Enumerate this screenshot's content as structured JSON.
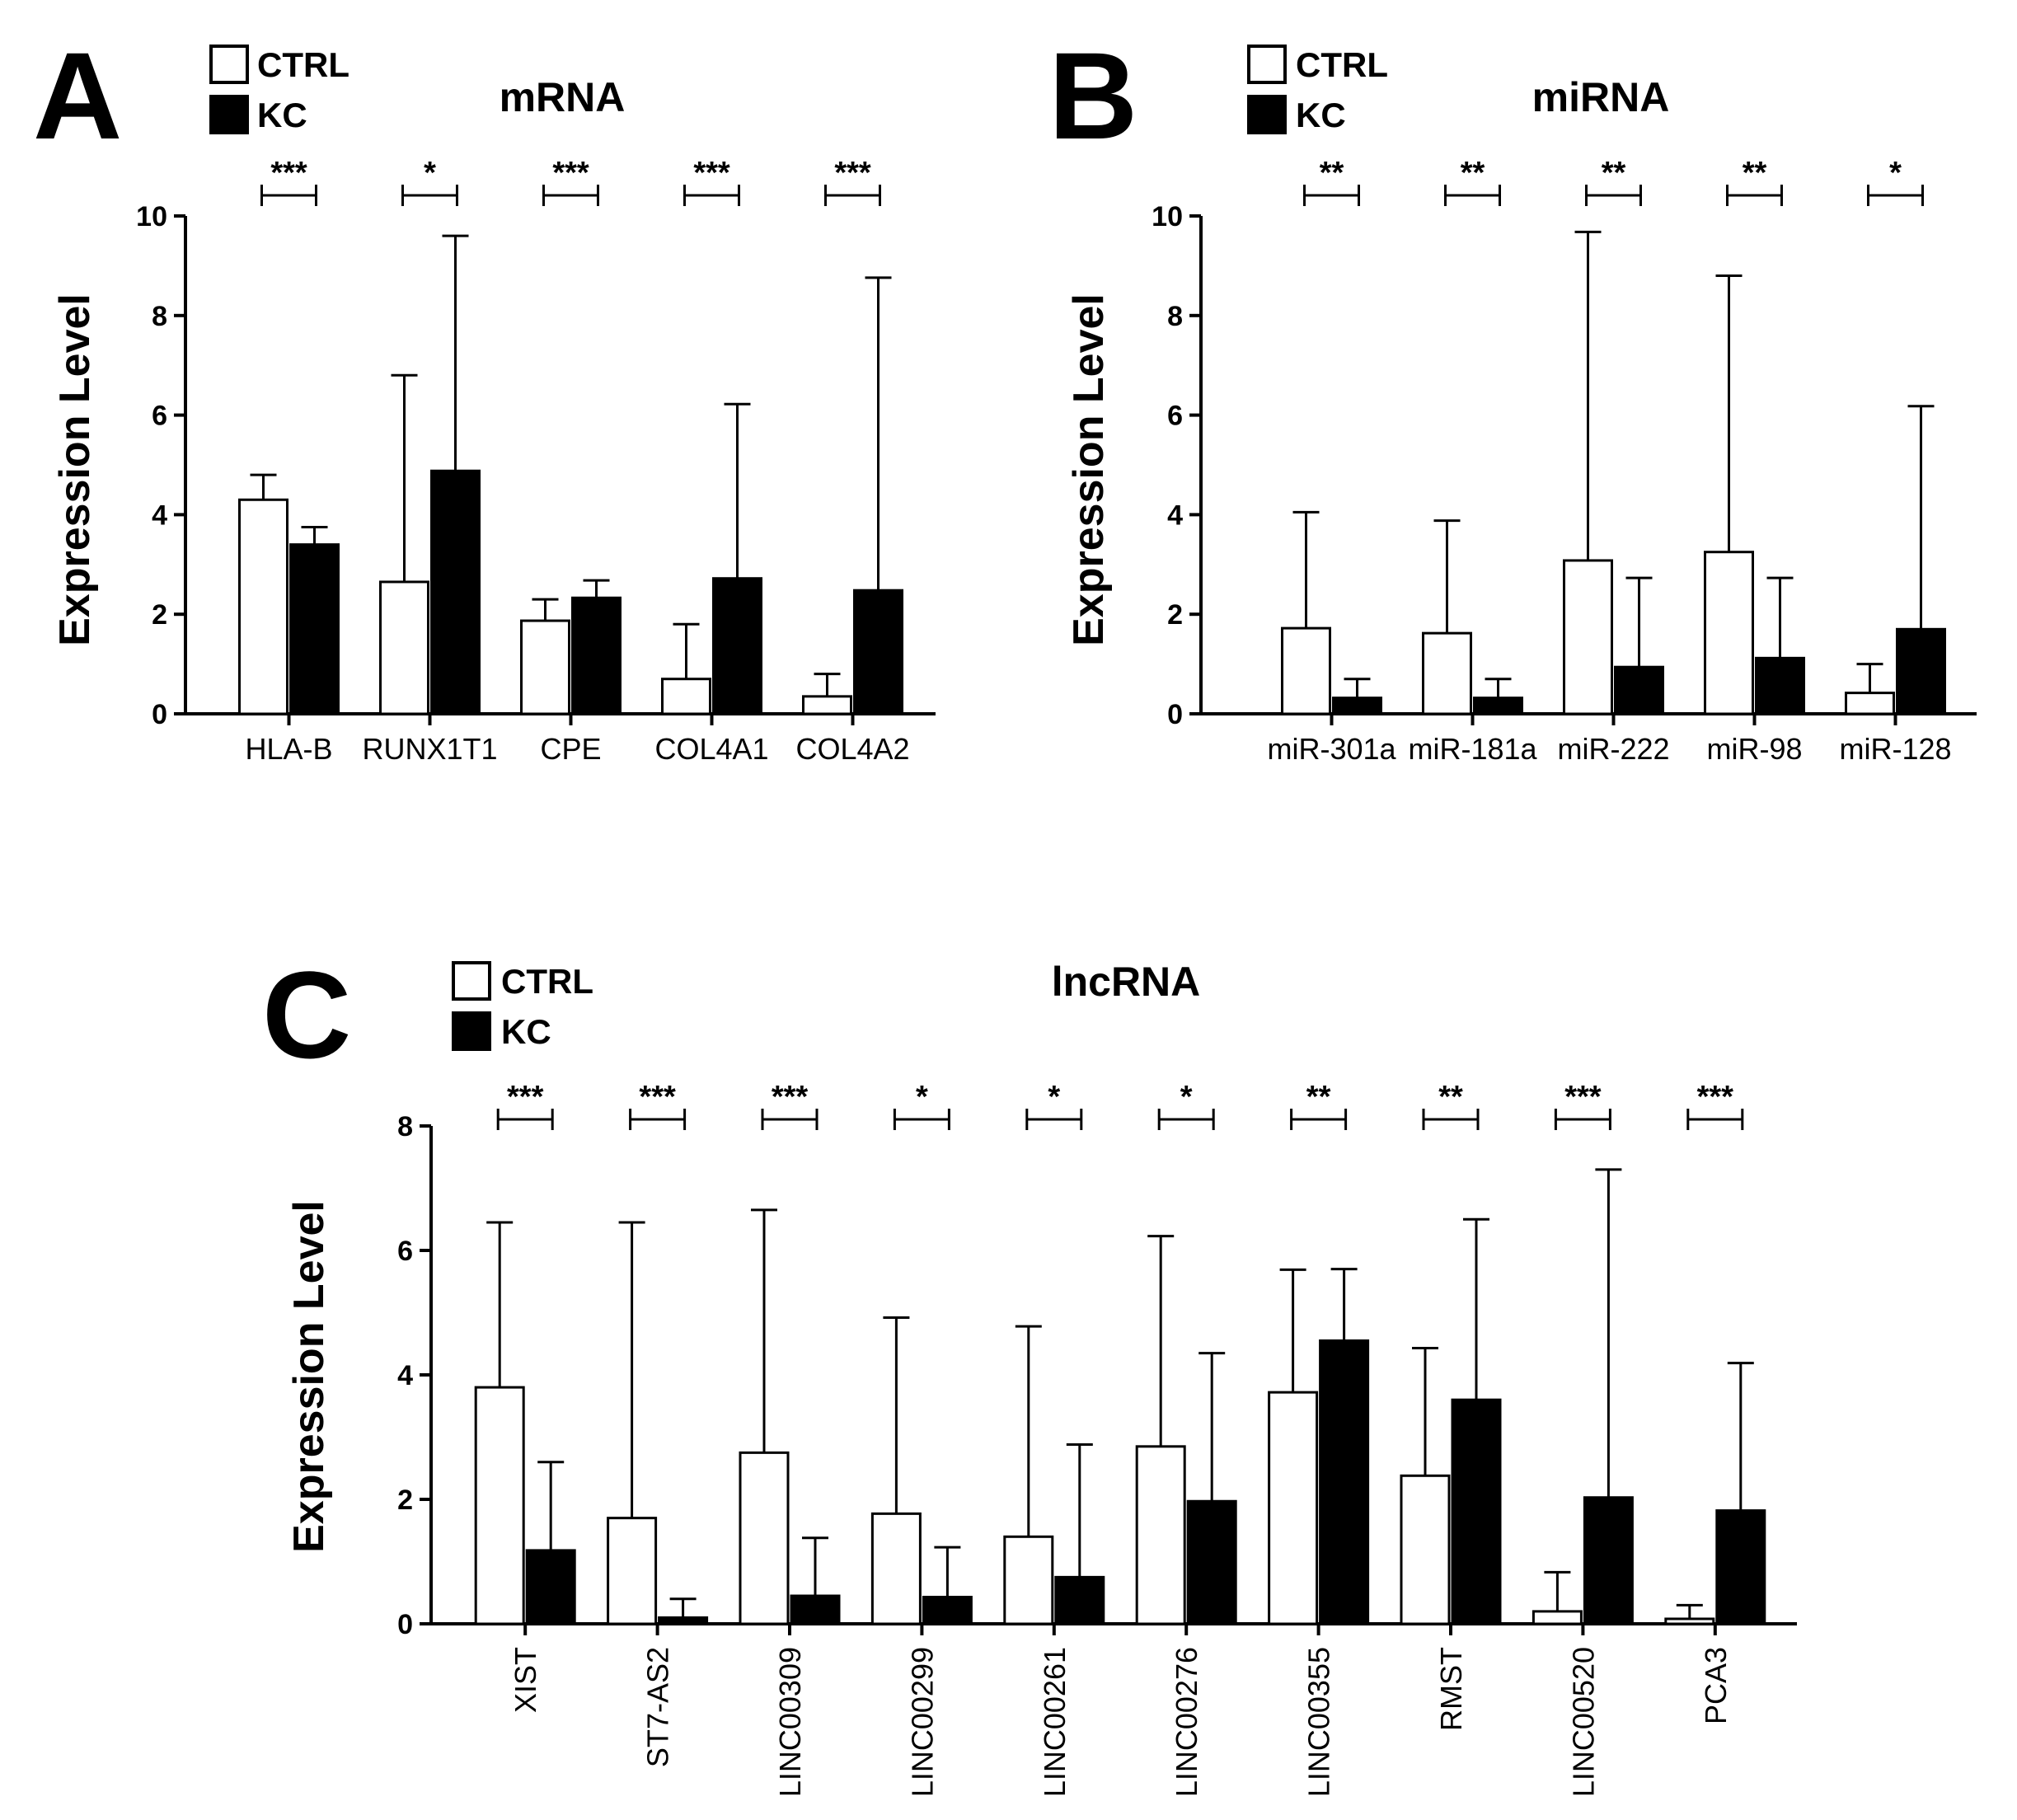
{
  "colors": {
    "ctrl": "#ffffff",
    "kc": "#000000",
    "stroke": "#000000"
  },
  "chart_data": [
    {
      "panel": "A",
      "type": "bar",
      "title": "mRNA",
      "ylabel": "Expression Level",
      "xlabel": "",
      "ylim": [
        0,
        10
      ],
      "yticks": [
        0,
        2,
        4,
        6,
        8,
        10
      ],
      "legend": [
        "CTRL",
        "KC"
      ],
      "legend_position": "top-left",
      "categories": [
        "HLA-B",
        "RUNX1T1",
        "CPE",
        "COL4A1",
        "COL4A2"
      ],
      "rotate_labels": false,
      "series": [
        {
          "name": "CTRL",
          "values": [
            4.3,
            2.65,
            1.87,
            0.7,
            0.35
          ],
          "errors": [
            0.5,
            4.15,
            0.43,
            1.1,
            0.45
          ]
        },
        {
          "name": "KC",
          "values": [
            3.4,
            4.88,
            2.33,
            2.72,
            2.48
          ],
          "errors": [
            0.35,
            4.72,
            0.35,
            3.5,
            6.28
          ]
        }
      ],
      "significance": [
        "***",
        "*",
        "***",
        "***",
        "***"
      ]
    },
    {
      "panel": "B",
      "type": "bar",
      "title": "miRNA",
      "ylabel": "Expression Level",
      "xlabel": "",
      "ylim": [
        0,
        10
      ],
      "yticks": [
        0,
        2,
        4,
        6,
        8,
        10
      ],
      "legend": [
        "CTRL",
        "KC"
      ],
      "legend_position": "top-left",
      "categories": [
        "miR-301a",
        "miR-181a",
        "miR-222",
        "miR-98",
        "miR-128"
      ],
      "rotate_labels": false,
      "series": [
        {
          "name": "CTRL",
          "values": [
            1.72,
            1.62,
            3.08,
            3.25,
            0.42
          ],
          "errors": [
            2.33,
            2.26,
            6.6,
            5.55,
            0.58
          ]
        },
        {
          "name": "KC",
          "values": [
            0.32,
            0.32,
            0.94,
            1.12,
            1.7
          ],
          "errors": [
            0.38,
            0.38,
            1.79,
            1.61,
            4.48
          ]
        }
      ],
      "significance": [
        "**",
        "**",
        "**",
        "**",
        "*"
      ]
    },
    {
      "panel": "C",
      "type": "bar",
      "title": "lncRNA",
      "ylabel": "Expression Level",
      "xlabel": "",
      "ylim": [
        0,
        8
      ],
      "yticks": [
        0,
        2,
        4,
        6,
        8
      ],
      "legend": [
        "CTRL",
        "KC"
      ],
      "legend_position": "top-left",
      "categories": [
        "XIST",
        "ST7-AS2",
        "LINC00309",
        "LINC00299",
        "LINC00261",
        "LINC00276",
        "LINC00355",
        "RMST",
        "LINC00520",
        "PCA3"
      ],
      "rotate_labels": true,
      "series": [
        {
          "name": "CTRL",
          "values": [
            3.8,
            1.7,
            2.75,
            1.77,
            1.4,
            2.85,
            3.72,
            2.38,
            0.2,
            0.08
          ],
          "errors": [
            2.65,
            4.75,
            3.9,
            3.15,
            3.38,
            3.38,
            1.97,
            2.05,
            0.63,
            0.22
          ]
        },
        {
          "name": "KC",
          "values": [
            1.18,
            0.1,
            0.45,
            0.43,
            0.75,
            1.97,
            4.55,
            3.6,
            2.03,
            1.82
          ],
          "errors": [
            1.42,
            0.3,
            0.93,
            0.8,
            2.13,
            2.38,
            1.15,
            2.9,
            5.27,
            2.37
          ]
        }
      ],
      "significance": [
        "***",
        "***",
        "***",
        "*",
        "*",
        "*",
        "**",
        "**",
        "***",
        "***"
      ]
    }
  ]
}
